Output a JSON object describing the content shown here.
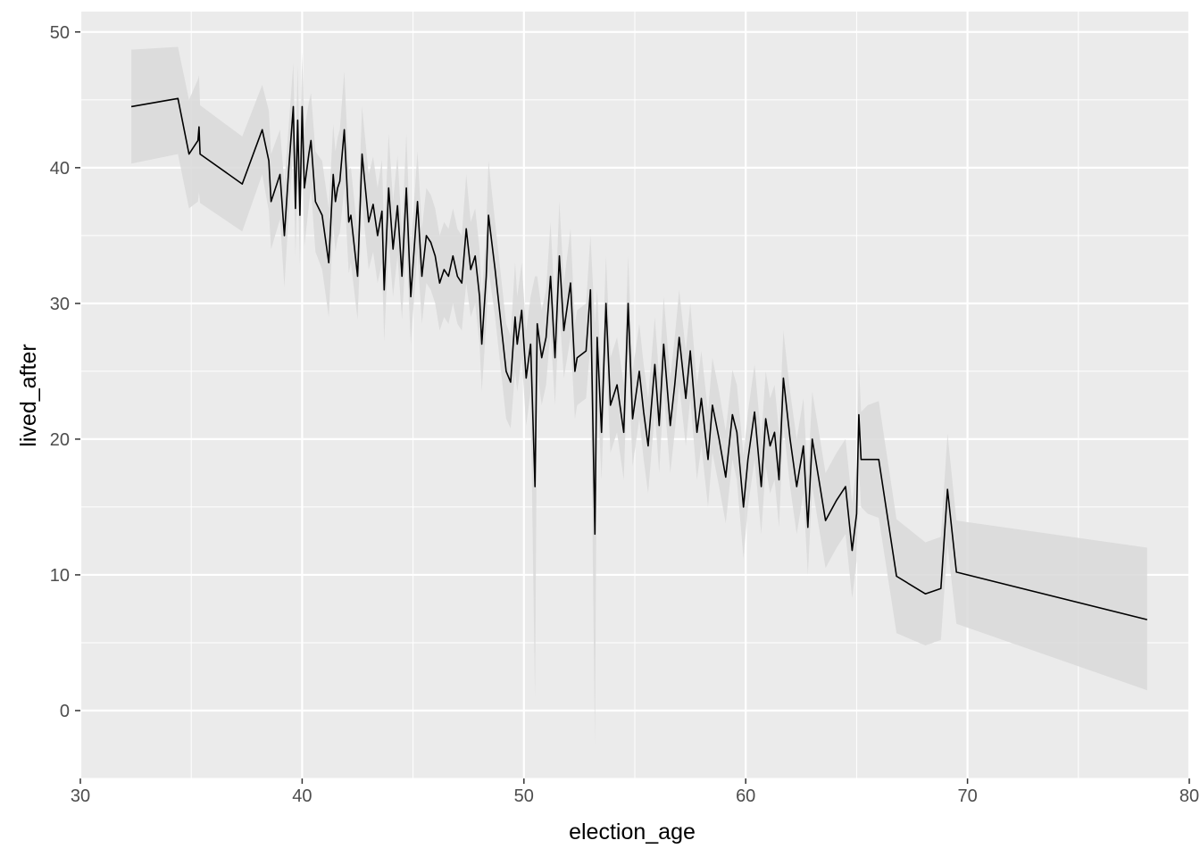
{
  "chart_data": {
    "type": "line",
    "title": "",
    "xlabel": "election_age",
    "ylabel": "lived_after",
    "xlim": [
      30,
      80
    ],
    "ylim": [
      -5,
      51.5
    ],
    "x_ticks": [
      30,
      40,
      50,
      60,
      70,
      80
    ],
    "y_ticks": [
      0,
      10,
      20,
      30,
      40,
      50
    ],
    "x_tick_labels": [
      "30",
      "40",
      "50",
      "60",
      "70",
      "80"
    ],
    "y_tick_labels": [
      "0",
      "10",
      "20",
      "30",
      "40",
      "50"
    ],
    "grid": true,
    "legend": "none",
    "colors": {
      "panel": "#ebebeb",
      "grid": "#ffffff",
      "line": "#000000",
      "band": "#d9d9d9",
      "tick_text": "#4d4d4d",
      "tick_mark": "#333333"
    },
    "series": [
      {
        "x": [
          32.3,
          34.4,
          34.9,
          35.3,
          35.35,
          35.4,
          37.3,
          38.2,
          38.5,
          38.6,
          39.0,
          39.2,
          39.4,
          39.6,
          39.7,
          39.8,
          39.9,
          40.0,
          40.1,
          40.3,
          40.4,
          40.6,
          40.9,
          41.2,
          41.4,
          41.5,
          41.6,
          41.7,
          41.9,
          42.1,
          42.2,
          42.5,
          42.7,
          43.0,
          43.2,
          43.4,
          43.6,
          43.7,
          43.9,
          44.1,
          44.3,
          44.5,
          44.7,
          44.9,
          45.2,
          45.4,
          45.6,
          45.8,
          46.0,
          46.2,
          46.4,
          46.6,
          46.8,
          47.0,
          47.2,
          47.4,
          47.6,
          47.8,
          48.0,
          48.1,
          48.3,
          48.4,
          48.7,
          49.2,
          49.4,
          49.6,
          49.7,
          49.9,
          50.1,
          50.3,
          50.5,
          50.6,
          50.8,
          51.0,
          51.2,
          51.4,
          51.6,
          51.8,
          52.1,
          52.3,
          52.4,
          52.8,
          53.0,
          53.2,
          53.3,
          53.5,
          53.7,
          53.9,
          54.2,
          54.5,
          54.7,
          54.9,
          55.2,
          55.4,
          55.6,
          55.9,
          56.1,
          56.3,
          56.6,
          56.8,
          57.0,
          57.3,
          57.5,
          57.8,
          58.0,
          58.3,
          58.5,
          58.8,
          59.1,
          59.4,
          59.6,
          59.9,
          60.1,
          60.4,
          60.7,
          60.9,
          61.1,
          61.3,
          61.5,
          61.7,
          62.0,
          62.3,
          62.6,
          62.8,
          63.0,
          63.3,
          63.6,
          64.1,
          64.5,
          64.8,
          65.0,
          65.1,
          65.2,
          65.5,
          66.0,
          66.8,
          68.1,
          68.8,
          69.1,
          69.5,
          78.1
        ],
        "y": [
          44.5,
          45.1,
          41.0,
          42.0,
          43.0,
          41.0,
          38.8,
          42.8,
          40.5,
          37.5,
          39.5,
          35.0,
          40.0,
          44.5,
          37.0,
          43.5,
          36.5,
          44.5,
          38.5,
          41.0,
          42.0,
          37.5,
          36.5,
          33.0,
          39.5,
          37.5,
          38.5,
          39.0,
          42.8,
          36.0,
          36.5,
          32.0,
          41.0,
          36.0,
          37.3,
          35.0,
          36.8,
          31.0,
          38.5,
          34.0,
          37.2,
          32.0,
          38.5,
          30.5,
          37.5,
          32.0,
          35.0,
          34.5,
          33.5,
          31.5,
          32.5,
          32.0,
          33.5,
          32.0,
          31.5,
          35.5,
          32.5,
          33.5,
          30.5,
          27.0,
          32.0,
          36.5,
          32.5,
          25.0,
          24.2,
          29.0,
          27.0,
          29.5,
          24.5,
          27.0,
          16.5,
          28.5,
          26.0,
          27.5,
          32.0,
          26.0,
          33.5,
          28.0,
          31.5,
          25.0,
          26.0,
          26.5,
          31.0,
          13.0,
          27.5,
          20.5,
          30.0,
          22.5,
          24.0,
          20.5,
          30.0,
          21.5,
          25.0,
          22.0,
          19.5,
          25.5,
          21.0,
          27.0,
          21.0,
          24.0,
          27.5,
          23.0,
          26.5,
          20.5,
          23.0,
          18.5,
          22.5,
          20.0,
          17.2,
          21.8,
          20.5,
          15.0,
          18.5,
          22.0,
          16.5,
          21.5,
          19.5,
          20.5,
          17.0,
          24.5,
          20.0,
          16.5,
          19.5,
          13.5,
          20.0,
          17.0,
          14.0,
          15.5,
          16.5,
          11.8,
          14.5,
          21.8,
          18.5,
          18.5,
          18.5,
          9.9,
          8.6,
          9.0,
          16.3,
          10.2,
          6.7
        ],
        "lower": [
          40.3,
          41.0,
          37.0,
          37.5,
          38.2,
          37.4,
          35.3,
          39.5,
          36.8,
          34.0,
          36.2,
          31.2,
          36.8,
          41.3,
          33.5,
          39.5,
          32.8,
          40.5,
          34.2,
          37.2,
          38.5,
          33.8,
          32.5,
          29.0,
          35.8,
          33.8,
          34.8,
          35.2,
          38.5,
          32.2,
          33.0,
          28.8,
          37.5,
          32.5,
          33.8,
          31.5,
          33.0,
          27.2,
          34.5,
          30.5,
          33.5,
          28.8,
          34.5,
          27.0,
          33.8,
          28.5,
          31.5,
          31.0,
          30.0,
          28.0,
          29.0,
          28.5,
          30.0,
          28.5,
          28.0,
          31.5,
          29.0,
          30.0,
          27.0,
          23.5,
          28.5,
          32.5,
          29.0,
          21.5,
          20.8,
          25.0,
          23.5,
          26.0,
          21.0,
          23.5,
          1.0,
          25.0,
          22.5,
          24.0,
          28.0,
          22.5,
          29.5,
          24.5,
          27.5,
          21.5,
          22.5,
          23.0,
          27.0,
          -2.5,
          24.0,
          17.0,
          26.5,
          19.0,
          20.5,
          17.0,
          26.5,
          18.0,
          21.5,
          18.5,
          16.0,
          22.0,
          17.5,
          23.5,
          17.5,
          20.5,
          24.0,
          19.5,
          23.0,
          17.0,
          19.5,
          15.0,
          19.0,
          16.5,
          13.8,
          18.5,
          17.0,
          11.2,
          15.0,
          18.5,
          13.0,
          18.0,
          16.0,
          17.0,
          13.5,
          21.0,
          16.5,
          13.0,
          16.0,
          10.0,
          16.5,
          13.5,
          10.5,
          12.0,
          13.0,
          8.3,
          11.0,
          18.0,
          15.0,
          14.5,
          14.2,
          5.7,
          4.8,
          5.2,
          12.2,
          6.4,
          1.5
        ],
        "upper": [
          48.7,
          48.9,
          45.0,
          46.5,
          46.8,
          44.6,
          42.3,
          46.1,
          44.2,
          41.0,
          42.8,
          38.8,
          43.2,
          47.7,
          40.5,
          47.5,
          40.2,
          48.5,
          42.8,
          44.8,
          45.5,
          41.2,
          40.5,
          37.0,
          43.2,
          41.2,
          42.2,
          42.8,
          47.1,
          39.8,
          40.0,
          35.2,
          44.5,
          39.5,
          40.8,
          38.5,
          40.6,
          34.8,
          42.5,
          37.5,
          40.9,
          35.2,
          42.5,
          34.0,
          41.2,
          35.5,
          38.5,
          38.0,
          37.0,
          35.0,
          36.0,
          35.5,
          37.0,
          35.5,
          35.0,
          39.5,
          36.0,
          37.0,
          34.0,
          30.5,
          35.5,
          40.5,
          36.0,
          28.5,
          27.6,
          33.0,
          30.5,
          33.0,
          28.0,
          30.5,
          32.0,
          32.0,
          29.5,
          31.0,
          36.0,
          29.5,
          37.5,
          31.5,
          35.5,
          28.5,
          29.5,
          30.0,
          35.0,
          28.5,
          31.0,
          24.0,
          33.5,
          26.0,
          27.5,
          24.0,
          33.5,
          25.0,
          28.5,
          25.5,
          23.0,
          29.0,
          24.5,
          30.5,
          24.5,
          27.5,
          31.0,
          26.5,
          30.0,
          24.0,
          26.5,
          22.0,
          26.0,
          23.5,
          20.6,
          25.1,
          24.0,
          18.8,
          22.0,
          25.5,
          20.0,
          25.0,
          23.0,
          24.0,
          20.5,
          28.0,
          23.5,
          20.0,
          23.0,
          17.0,
          23.5,
          20.5,
          17.5,
          19.0,
          20.0,
          15.3,
          18.0,
          25.6,
          22.0,
          22.5,
          22.8,
          14.1,
          12.4,
          12.8,
          20.4,
          14.0,
          12.0
        ]
      }
    ]
  }
}
